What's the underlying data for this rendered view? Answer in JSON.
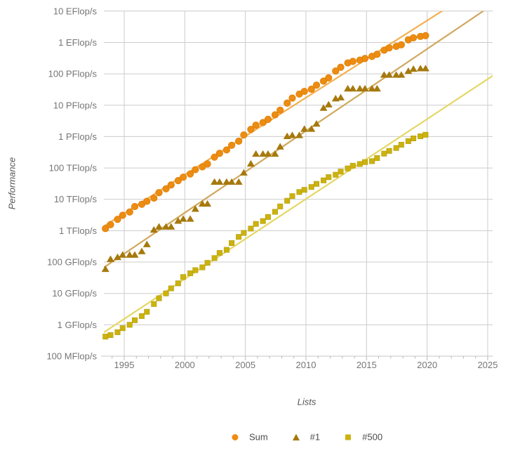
{
  "axes": {
    "x_title": "Lists",
    "y_title": "Performance"
  },
  "chart_data": {
    "type": "scatter",
    "scale": "log-y",
    "xlabel": "Lists",
    "ylabel": "Performance",
    "xlim": [
      1993.32,
      2025.41
    ],
    "ylim_log10_gflops": [
      -1,
      10
    ],
    "grid": true,
    "legend_position": "bottom",
    "background_color": "#ffffff",
    "gridline_color": "#cccccc",
    "tick_label_color": "#757575",
    "x_ticks": [
      {
        "label": "1995",
        "year": 1995
      },
      {
        "label": "2000",
        "year": 2000
      },
      {
        "label": "2005",
        "year": 2005
      },
      {
        "label": "2010",
        "year": 2010
      },
      {
        "label": "2015",
        "year": 2015
      },
      {
        "label": "2020",
        "year": 2020
      },
      {
        "label": "2025",
        "year": 2025
      }
    ],
    "y_ticks": [
      {
        "label": "10 EFlop/s",
        "log_gflops": 10
      },
      {
        "label": "1 EFlop/s",
        "log_gflops": 9
      },
      {
        "label": "100 PFlop/s",
        "log_gflops": 8
      },
      {
        "label": "10 PFlop/s",
        "log_gflops": 7
      },
      {
        "label": "1 PFlop/s",
        "log_gflops": 6
      },
      {
        "label": "100 TFlop/s",
        "log_gflops": 5
      },
      {
        "label": "10 TFlop/s",
        "log_gflops": 4
      },
      {
        "label": "1 TFlop/s",
        "log_gflops": 3
      },
      {
        "label": "100 GFlop/s",
        "log_gflops": 2
      },
      {
        "label": "10 GFlop/s",
        "log_gflops": 1
      },
      {
        "label": "1 GFlop/s",
        "log_gflops": 0
      },
      {
        "label": "100 MFlop/s",
        "log_gflops": -1
      }
    ],
    "x": [
      1993.45,
      1993.87,
      1994.45,
      1994.87,
      1995.45,
      1995.87,
      1996.45,
      1996.87,
      1997.45,
      1997.87,
      1998.45,
      1998.87,
      1999.45,
      1999.87,
      2000.45,
      2000.87,
      2001.45,
      2001.87,
      2002.45,
      2002.87,
      2003.45,
      2003.87,
      2004.45,
      2004.87,
      2005.45,
      2005.87,
      2006.45,
      2006.87,
      2007.45,
      2007.87,
      2008.45,
      2008.87,
      2009.45,
      2009.87,
      2010.45,
      2010.87,
      2011.45,
      2011.87,
      2012.45,
      2012.87,
      2013.45,
      2013.87,
      2014.45,
      2014.87,
      2015.45,
      2015.87,
      2016.45,
      2016.87,
      2017.45,
      2017.87,
      2018.45,
      2018.87,
      2019.45,
      2019.87
    ],
    "series": [
      {
        "name": "Sum",
        "marker": "circle",
        "color": "#ED8C12",
        "trend_color": "#F3B04F",
        "has_trendline": true,
        "values_gflops": [
          1170,
          1560,
          2300,
          3100,
          3940,
          5870,
          6940,
          8650,
          10900,
          16300,
          21600,
          28700,
          39400,
          50900,
          64200,
          88000,
          108000,
          134000,
          221000,
          293000,
          375000,
          528000,
          713000,
          1130000,
          1690000,
          2300000,
          2790000,
          3540000,
          4920000,
          6960000,
          11700000,
          16900000,
          22600000,
          27600000,
          32400000,
          43700000,
          58700000,
          74200000,
          123000000,
          162000000,
          223000000,
          250000000,
          274000000,
          309000000,
          361000000,
          420000000,
          567000000,
          672000000,
          749000000,
          845000000,
          1220000000,
          1410000000,
          1560000000,
          1650000000
        ]
      },
      {
        "name": "#1",
        "marker": "triangle",
        "color": "#A6790D",
        "trend_color": "#D0A85C",
        "has_trendline": true,
        "values_gflops": [
          59.7,
          124,
          143,
          170,
          170,
          170,
          220,
          368,
          1068,
          1338,
          1338,
          1338,
          2060,
          2379,
          2379,
          4938,
          7226,
          7226,
          35860,
          35860,
          35860,
          35860,
          35860,
          70720,
          136800,
          280600,
          280600,
          280600,
          280600,
          478200,
          1026000,
          1105000,
          1105000,
          1759000,
          1759000,
          2566000,
          8162000,
          10510000,
          16325000,
          17590000,
          33863000,
          33863000,
          33863000,
          33863000,
          33863000,
          33863000,
          93015000,
          93015000,
          93015000,
          93015000,
          122300000,
          143500000,
          148600000,
          148600000
        ]
      },
      {
        "name": "#500",
        "marker": "square",
        "color": "#CBB20E",
        "trend_color": "#E4D764",
        "has_trendline": true,
        "values_gflops": [
          0.42,
          0.47,
          0.58,
          0.78,
          1.0,
          1.4,
          1.9,
          2.6,
          4.6,
          7.0,
          10.0,
          14.5,
          21.0,
          33.4,
          43.8,
          55.1,
          67.8,
          94.3,
          134,
          195,
          245,
          403,
          634,
          850,
          1166,
          1646,
          2026,
          2737,
          4005,
          5930,
          9000,
          12640,
          17100,
          20050,
          24670,
          31100,
          40190,
          50900,
          60800,
          76500,
          96600,
          117800,
          133700,
          153600,
          164800,
          206300,
          286100,
          349300,
          432200,
          548700,
          716000,
          874800,
          1022000,
          1142000
        ]
      }
    ]
  },
  "legend": {
    "items": [
      {
        "label": "Sum"
      },
      {
        "label": "#1"
      },
      {
        "label": "#500"
      }
    ]
  }
}
